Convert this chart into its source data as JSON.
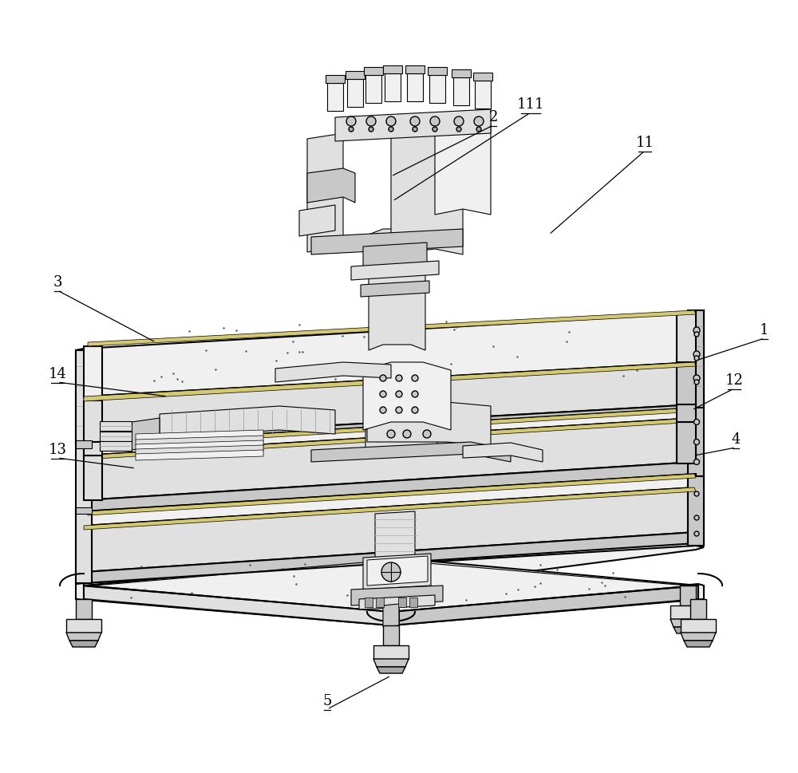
{
  "figure_width": 10.0,
  "figure_height": 9.7,
  "dpi": 100,
  "bg_color": "#ffffff",
  "labels_info": [
    [
      "1",
      955,
      575,
      862,
      618
    ],
    [
      "2",
      618,
      158,
      488,
      220
    ],
    [
      "11",
      808,
      188,
      720,
      295
    ],
    [
      "111",
      668,
      142,
      490,
      258
    ],
    [
      "12",
      920,
      490,
      862,
      518
    ],
    [
      "3",
      75,
      365,
      195,
      395
    ],
    [
      "14",
      75,
      482,
      195,
      498
    ],
    [
      "13",
      75,
      582,
      175,
      590
    ],
    [
      "4",
      920,
      565,
      862,
      572
    ],
    [
      "5",
      415,
      895,
      490,
      852
    ]
  ],
  "lw_main": 1.5,
  "lw_thin": 0.8
}
